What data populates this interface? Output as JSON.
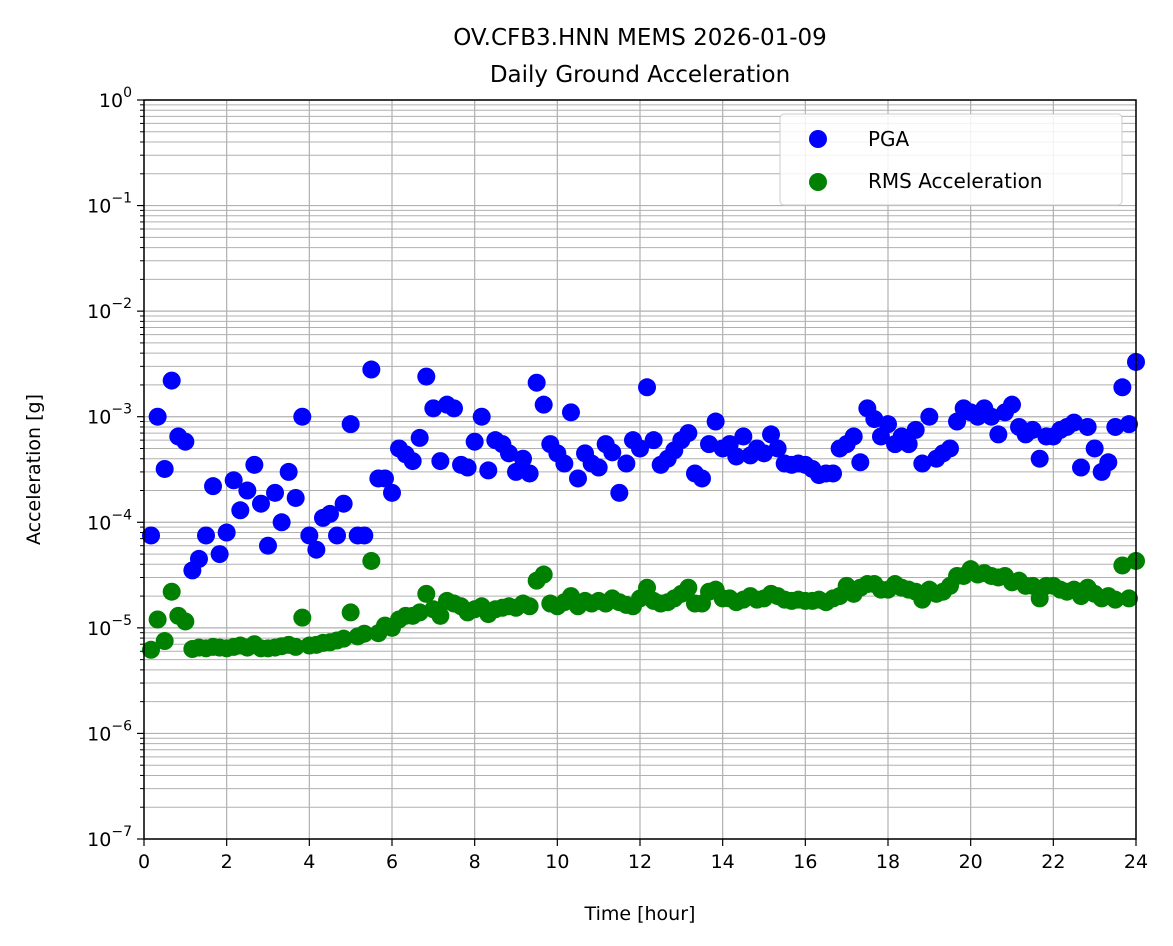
{
  "chart_data": {
    "type": "scatter",
    "title": "OV.CFB3.HNN MEMS 2026-01-09",
    "subtitle": "Daily Ground Acceleration",
    "xlabel": "Time [hour]",
    "ylabel": "Acceleration [g]",
    "xlim": [
      0,
      24
    ],
    "ylim": [
      1e-07,
      1
    ],
    "yscale": "log",
    "grid": "both (major and minor)",
    "legend_position": "top-right",
    "x_ticks": [
      "0",
      "2",
      "4",
      "6",
      "8",
      "10",
      "12",
      "14",
      "16",
      "18",
      "20",
      "22",
      "24"
    ],
    "y_ticks": [
      {
        "base": "10",
        "exp": "−7"
      },
      {
        "base": "10",
        "exp": "−6"
      },
      {
        "base": "10",
        "exp": "−5"
      },
      {
        "base": "10",
        "exp": "−4"
      },
      {
        "base": "10",
        "exp": "−3"
      },
      {
        "base": "10",
        "exp": "−2"
      },
      {
        "base": "10",
        "exp": "−1"
      },
      {
        "base": "10",
        "exp": "0"
      }
    ],
    "series": [
      {
        "name": "PGA",
        "color": "#0000ff",
        "points": [
          [
            0.17,
            7.5e-05
          ],
          [
            0.33,
            0.001
          ],
          [
            0.5,
            0.00032
          ],
          [
            0.67,
            0.0022
          ],
          [
            0.83,
            0.00065
          ],
          [
            1.0,
            0.00058
          ],
          [
            1.17,
            3.5e-05
          ],
          [
            1.33,
            4.5e-05
          ],
          [
            1.5,
            7.5e-05
          ],
          [
            1.67,
            0.00022
          ],
          [
            1.83,
            5e-05
          ],
          [
            2.0,
            8e-05
          ],
          [
            2.17,
            0.00025
          ],
          [
            2.33,
            0.00013
          ],
          [
            2.5,
            0.0002
          ],
          [
            2.67,
            0.00035
          ],
          [
            2.83,
            0.00015
          ],
          [
            3.0,
            6e-05
          ],
          [
            3.17,
            0.00019
          ],
          [
            3.33,
            0.0001
          ],
          [
            3.5,
            0.0003
          ],
          [
            3.67,
            0.00017
          ],
          [
            3.83,
            0.001
          ],
          [
            4.0,
            7.5e-05
          ],
          [
            4.17,
            5.5e-05
          ],
          [
            4.33,
            0.00011
          ],
          [
            4.5,
            0.00012
          ],
          [
            4.67,
            7.5e-05
          ],
          [
            4.83,
            0.00015
          ],
          [
            5.0,
            0.00085
          ],
          [
            5.17,
            7.5e-05
          ],
          [
            5.33,
            7.5e-05
          ],
          [
            5.5,
            0.0028
          ],
          [
            5.67,
            0.00026
          ],
          [
            5.83,
            0.00026
          ],
          [
            6.0,
            0.00019
          ],
          [
            6.17,
            0.0005
          ],
          [
            6.33,
            0.00044
          ],
          [
            6.5,
            0.00038
          ],
          [
            6.67,
            0.00063
          ],
          [
            6.83,
            0.0024
          ],
          [
            7.0,
            0.0012
          ],
          [
            7.17,
            0.00038
          ],
          [
            7.33,
            0.0013
          ],
          [
            7.5,
            0.0012
          ],
          [
            7.67,
            0.00035
          ],
          [
            7.83,
            0.00033
          ],
          [
            8.0,
            0.00058
          ],
          [
            8.17,
            0.001
          ],
          [
            8.33,
            0.00031
          ],
          [
            8.5,
            0.0006
          ],
          [
            8.67,
            0.00055
          ],
          [
            8.83,
            0.00045
          ],
          [
            9.0,
            0.0003
          ],
          [
            9.17,
            0.0004
          ],
          [
            9.33,
            0.00029
          ],
          [
            9.5,
            0.0021
          ],
          [
            9.67,
            0.0013
          ],
          [
            9.83,
            0.00055
          ],
          [
            10.0,
            0.00045
          ],
          [
            10.17,
            0.00036
          ],
          [
            10.33,
            0.0011
          ],
          [
            10.5,
            0.00026
          ],
          [
            10.67,
            0.00045
          ],
          [
            10.83,
            0.00036
          ],
          [
            11.0,
            0.00033
          ],
          [
            11.17,
            0.00055
          ],
          [
            11.33,
            0.00046
          ],
          [
            11.5,
            0.00019
          ],
          [
            11.67,
            0.00036
          ],
          [
            11.83,
            0.0006
          ],
          [
            12.0,
            0.0005
          ],
          [
            12.17,
            0.0019
          ],
          [
            12.33,
            0.0006
          ],
          [
            12.5,
            0.00035
          ],
          [
            12.67,
            0.0004
          ],
          [
            12.83,
            0.00048
          ],
          [
            13.0,
            0.0006
          ],
          [
            13.17,
            0.0007
          ],
          [
            13.33,
            0.00029
          ],
          [
            13.5,
            0.00026
          ],
          [
            13.67,
            0.00055
          ],
          [
            13.83,
            0.0009
          ],
          [
            14.0,
            0.0005
          ],
          [
            14.17,
            0.00055
          ],
          [
            14.33,
            0.00042
          ],
          [
            14.5,
            0.00065
          ],
          [
            14.67,
            0.00043
          ],
          [
            14.83,
            0.0005
          ],
          [
            15.0,
            0.00045
          ],
          [
            15.17,
            0.00068
          ],
          [
            15.33,
            0.0005
          ],
          [
            15.5,
            0.00036
          ],
          [
            15.67,
            0.00035
          ],
          [
            15.83,
            0.00036
          ],
          [
            16.0,
            0.00035
          ],
          [
            16.17,
            0.00032
          ],
          [
            16.33,
            0.00028
          ],
          [
            16.5,
            0.00029
          ],
          [
            16.67,
            0.00029
          ],
          [
            16.83,
            0.0005
          ],
          [
            17.0,
            0.00055
          ],
          [
            17.17,
            0.00065
          ],
          [
            17.33,
            0.00037
          ],
          [
            17.5,
            0.0012
          ],
          [
            17.67,
            0.00095
          ],
          [
            17.83,
            0.00065
          ],
          [
            18.0,
            0.00085
          ],
          [
            18.17,
            0.00055
          ],
          [
            18.33,
            0.00065
          ],
          [
            18.5,
            0.00055
          ],
          [
            18.67,
            0.00075
          ],
          [
            18.83,
            0.00036
          ],
          [
            19.0,
            0.001
          ],
          [
            19.17,
            0.0004
          ],
          [
            19.33,
            0.00045
          ],
          [
            19.5,
            0.0005
          ],
          [
            19.67,
            0.0009
          ],
          [
            19.83,
            0.0012
          ],
          [
            20.0,
            0.0011
          ],
          [
            20.17,
            0.001
          ],
          [
            20.33,
            0.0012
          ],
          [
            20.5,
            0.001
          ],
          [
            20.67,
            0.00068
          ],
          [
            20.83,
            0.0011
          ],
          [
            21.0,
            0.0013
          ],
          [
            21.17,
            0.0008
          ],
          [
            21.33,
            0.00068
          ],
          [
            21.5,
            0.00075
          ],
          [
            21.67,
            0.0004
          ],
          [
            21.83,
            0.00065
          ],
          [
            22.0,
            0.00065
          ],
          [
            22.17,
            0.00075
          ],
          [
            22.33,
            0.0008
          ],
          [
            22.5,
            0.00088
          ],
          [
            22.67,
            0.00033
          ],
          [
            22.83,
            0.0008
          ],
          [
            23.0,
            0.0005
          ],
          [
            23.17,
            0.0003
          ],
          [
            23.33,
            0.00037
          ],
          [
            23.5,
            0.0008
          ],
          [
            23.67,
            0.0019
          ],
          [
            23.83,
            0.00085
          ],
          [
            24.0,
            0.0033
          ]
        ]
      },
      {
        "name": "RMS Acceleration",
        "color": "#008000",
        "points": [
          [
            0.17,
            6.2e-06
          ],
          [
            0.33,
            1.2e-05
          ],
          [
            0.5,
            7.5e-06
          ],
          [
            0.67,
            2.2e-05
          ],
          [
            0.83,
            1.3e-05
          ],
          [
            1.0,
            1.15e-05
          ],
          [
            1.17,
            6.3e-06
          ],
          [
            1.33,
            6.5e-06
          ],
          [
            1.5,
            6.4e-06
          ],
          [
            1.67,
            6.6e-06
          ],
          [
            1.83,
            6.5e-06
          ],
          [
            2.0,
            6.4e-06
          ],
          [
            2.17,
            6.6e-06
          ],
          [
            2.33,
            6.8e-06
          ],
          [
            2.5,
            6.5e-06
          ],
          [
            2.67,
            7e-06
          ],
          [
            2.83,
            6.4e-06
          ],
          [
            3.0,
            6.4e-06
          ],
          [
            3.17,
            6.5e-06
          ],
          [
            3.33,
            6.7e-06
          ],
          [
            3.5,
            6.9e-06
          ],
          [
            3.67,
            6.6e-06
          ],
          [
            3.83,
            1.25e-05
          ],
          [
            4.0,
            6.8e-06
          ],
          [
            4.17,
            6.9e-06
          ],
          [
            4.33,
            7.2e-06
          ],
          [
            4.5,
            7.3e-06
          ],
          [
            4.67,
            7.6e-06
          ],
          [
            4.83,
            7.9e-06
          ],
          [
            5.0,
            1.4e-05
          ],
          [
            5.17,
            8.3e-06
          ],
          [
            5.33,
            8.8e-06
          ],
          [
            5.5,
            4.3e-05
          ],
          [
            5.67,
            8.9e-06
          ],
          [
            5.83,
            1.05e-05
          ],
          [
            6.0,
            1e-05
          ],
          [
            6.17,
            1.2e-05
          ],
          [
            6.33,
            1.3e-05
          ],
          [
            6.5,
            1.3e-05
          ],
          [
            6.67,
            1.4e-05
          ],
          [
            6.83,
            2.1e-05
          ],
          [
            7.0,
            1.5e-05
          ],
          [
            7.17,
            1.3e-05
          ],
          [
            7.33,
            1.8e-05
          ],
          [
            7.5,
            1.7e-05
          ],
          [
            7.67,
            1.6e-05
          ],
          [
            7.83,
            1.4e-05
          ],
          [
            8.0,
            1.5e-05
          ],
          [
            8.17,
            1.6e-05
          ],
          [
            8.33,
            1.35e-05
          ],
          [
            8.5,
            1.5e-05
          ],
          [
            8.67,
            1.55e-05
          ],
          [
            8.83,
            1.6e-05
          ],
          [
            9.0,
            1.55e-05
          ],
          [
            9.17,
            1.7e-05
          ],
          [
            9.33,
            1.6e-05
          ],
          [
            9.5,
            2.8e-05
          ],
          [
            9.67,
            3.2e-05
          ],
          [
            9.83,
            1.7e-05
          ],
          [
            10.0,
            1.6e-05
          ],
          [
            10.17,
            1.75e-05
          ],
          [
            10.33,
            2e-05
          ],
          [
            10.5,
            1.6e-05
          ],
          [
            10.67,
            1.8e-05
          ],
          [
            10.83,
            1.7e-05
          ],
          [
            11.0,
            1.8e-05
          ],
          [
            11.17,
            1.7e-05
          ],
          [
            11.33,
            1.9e-05
          ],
          [
            11.5,
            1.75e-05
          ],
          [
            11.67,
            1.65e-05
          ],
          [
            11.83,
            1.6e-05
          ],
          [
            12.0,
            1.9e-05
          ],
          [
            12.17,
            2.4e-05
          ],
          [
            12.33,
            1.8e-05
          ],
          [
            12.5,
            1.7e-05
          ],
          [
            12.67,
            1.75e-05
          ],
          [
            12.83,
            1.9e-05
          ],
          [
            13.0,
            2.1e-05
          ],
          [
            13.17,
            2.4e-05
          ],
          [
            13.33,
            1.7e-05
          ],
          [
            13.5,
            1.7e-05
          ],
          [
            13.67,
            2.2e-05
          ],
          [
            13.83,
            2.3e-05
          ],
          [
            14.0,
            1.9e-05
          ],
          [
            14.17,
            1.9e-05
          ],
          [
            14.33,
            1.75e-05
          ],
          [
            14.5,
            1.85e-05
          ],
          [
            14.67,
            2e-05
          ],
          [
            14.83,
            1.85e-05
          ],
          [
            15.0,
            1.9e-05
          ],
          [
            15.17,
            2.1e-05
          ],
          [
            15.33,
            2e-05
          ],
          [
            15.5,
            1.85e-05
          ],
          [
            15.67,
            1.8e-05
          ],
          [
            15.83,
            1.85e-05
          ],
          [
            16.0,
            1.8e-05
          ],
          [
            16.17,
            1.8e-05
          ],
          [
            16.33,
            1.85e-05
          ],
          [
            16.5,
            1.75e-05
          ],
          [
            16.67,
            1.9e-05
          ],
          [
            16.83,
            2e-05
          ],
          [
            17.0,
            2.5e-05
          ],
          [
            17.17,
            2.1e-05
          ],
          [
            17.33,
            2.4e-05
          ],
          [
            17.5,
            2.6e-05
          ],
          [
            17.67,
            2.6e-05
          ],
          [
            17.83,
            2.3e-05
          ],
          [
            18.0,
            2.3e-05
          ],
          [
            18.17,
            2.6e-05
          ],
          [
            18.33,
            2.4e-05
          ],
          [
            18.5,
            2.3e-05
          ],
          [
            18.67,
            2.2e-05
          ],
          [
            18.83,
            1.85e-05
          ],
          [
            19.0,
            2.3e-05
          ],
          [
            19.17,
            2.1e-05
          ],
          [
            19.33,
            2.2e-05
          ],
          [
            19.5,
            2.5e-05
          ],
          [
            19.67,
            3.1e-05
          ],
          [
            19.83,
            3.1e-05
          ],
          [
            20.0,
            3.6e-05
          ],
          [
            20.17,
            3.2e-05
          ],
          [
            20.33,
            3.3e-05
          ],
          [
            20.5,
            3.1e-05
          ],
          [
            20.67,
            3e-05
          ],
          [
            20.83,
            3.1e-05
          ],
          [
            21.0,
            2.7e-05
          ],
          [
            21.17,
            2.8e-05
          ],
          [
            21.33,
            2.5e-05
          ],
          [
            21.5,
            2.5e-05
          ],
          [
            21.67,
            1.9e-05
          ],
          [
            21.83,
            2.5e-05
          ],
          [
            22.0,
            2.5e-05
          ],
          [
            22.17,
            2.3e-05
          ],
          [
            22.33,
            2.2e-05
          ],
          [
            22.5,
            2.3e-05
          ],
          [
            22.67,
            2e-05
          ],
          [
            22.83,
            2.4e-05
          ],
          [
            23.0,
            2.1e-05
          ],
          [
            23.17,
            1.9e-05
          ],
          [
            23.33,
            2e-05
          ],
          [
            23.5,
            1.85e-05
          ],
          [
            23.67,
            3.9e-05
          ],
          [
            23.83,
            1.9e-05
          ],
          [
            24.0,
            4.3e-05
          ]
        ]
      }
    ]
  }
}
